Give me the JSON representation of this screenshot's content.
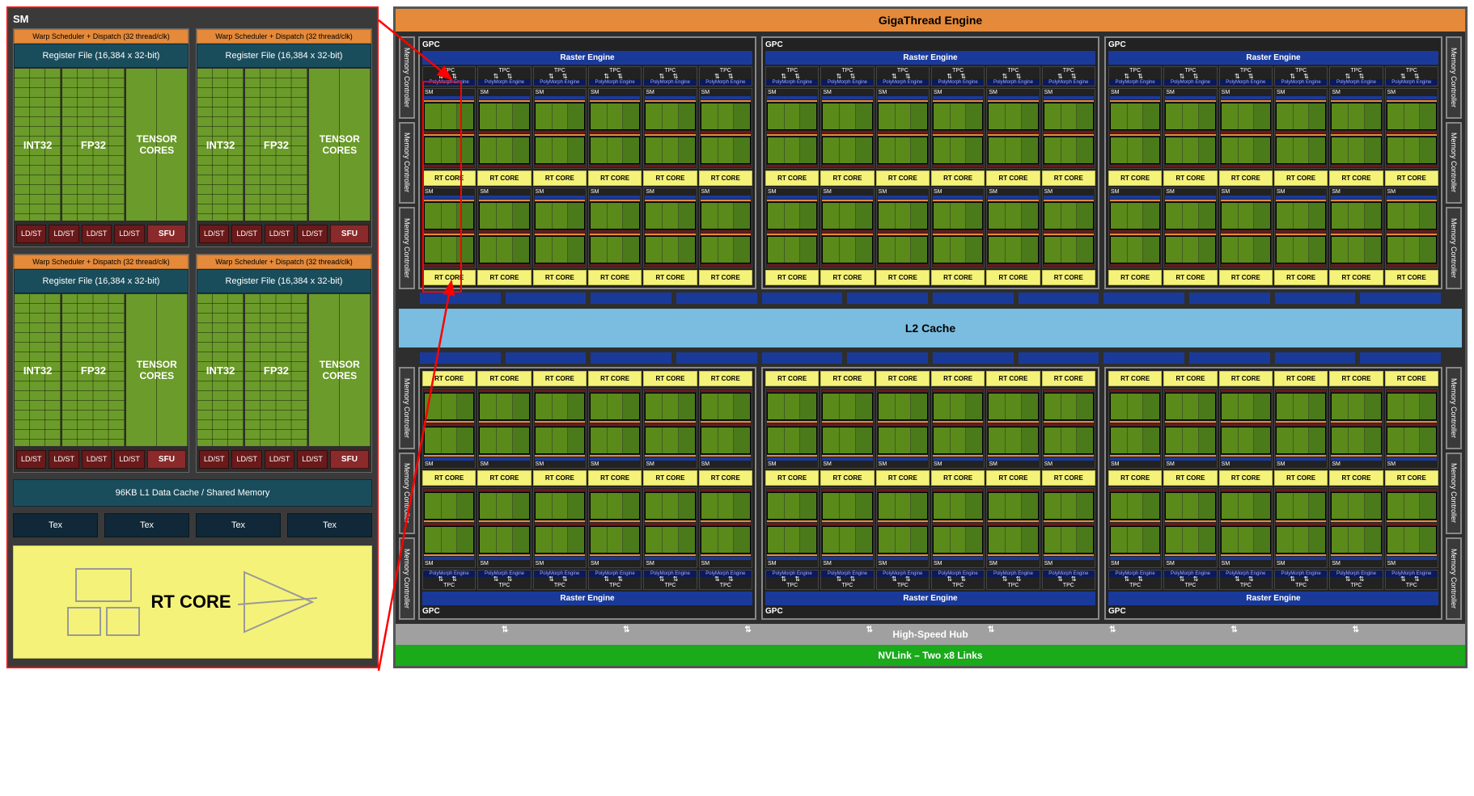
{
  "diagram_type": "gpu-architecture-block-diagram",
  "colors": {
    "background": "#2e2e2e",
    "panel_border": "#888888",
    "orange": "#e58a3a",
    "teal": "#1a4d5c",
    "green_core": "#6b9b2a",
    "dark_green": "#4a7a1a",
    "brown_red": "#6a1a1a",
    "sfu_red": "#8a2a2a",
    "navy": "#1a3a9a",
    "deep_navy": "#0a1a5a",
    "yellow": "#f5f27a",
    "l2_blue": "#7abde0",
    "grey": "#a0a0a0",
    "nvlink_green": "#1aaa1a",
    "callout_red": "#ff0000",
    "tex_blue": "#102838"
  },
  "sm": {
    "title": "SM",
    "warp": "Warp Scheduler + Dispatch (32 thread/clk)",
    "regfile": "Register File (16,384 x 32-bit)",
    "int32": "INT32",
    "fp32": "FP32",
    "tensor": "TENSOR CORES",
    "ldst": "LD/ST",
    "sfu": "SFU",
    "l1": "96KB L1 Data Cache / Shared Memory",
    "tex": "Tex",
    "rtcore": "RT CORE",
    "quadrant_count": 4,
    "ldst_per_quadrant": 4,
    "tex_count": 4
  },
  "chip": {
    "gigathread": "GigaThread Engine",
    "mem_ctrl": "Memory Controller",
    "memory_controllers_per_side": 6,
    "gpc": "GPC",
    "gpc_count": 6,
    "gpc_rows": 2,
    "gpc_cols": 3,
    "raster": "Raster Engine",
    "tpc": "TPC",
    "tpcs_per_gpc": 6,
    "poly": "PolyMorph Engine",
    "sm_label": "SM",
    "sm_rows_per_gpc_half": 2,
    "rtcore": "RT CORE",
    "l2": "L2 Cache",
    "blue_spacer_segments": 12,
    "hshub": "High-Speed Hub",
    "hshub_arrow_count": 8,
    "nvlink": "NVLink – Two x8 Links"
  },
  "typography": {
    "title_fontsize_pt": 14,
    "label_fontsize_pt": 11,
    "small_label_fontsize_pt": 8,
    "font_family": "Arial"
  }
}
